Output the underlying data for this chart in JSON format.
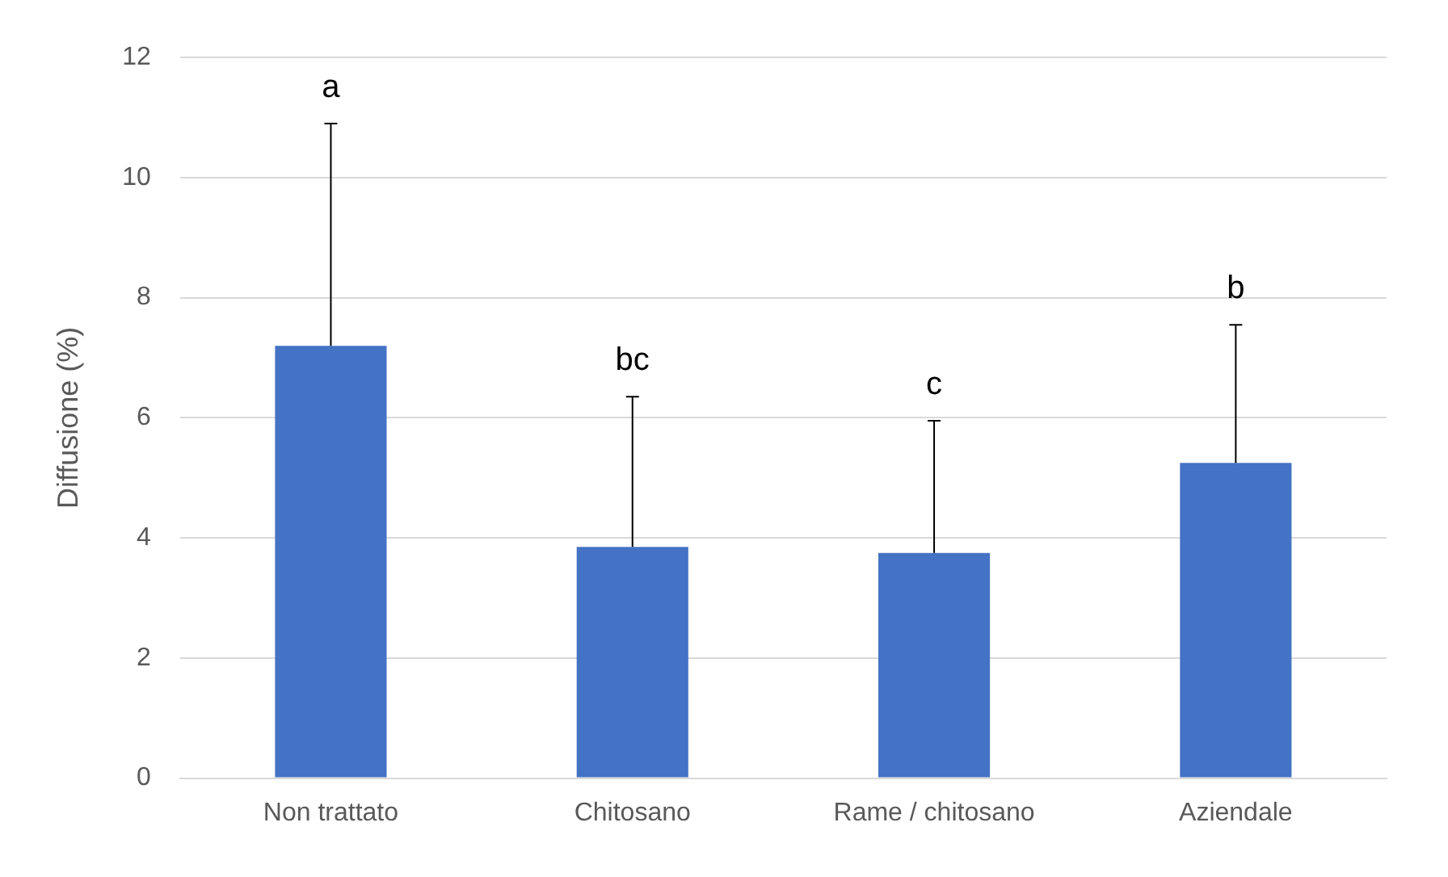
{
  "chart_data": {
    "type": "bar",
    "ylabel": "Diffusione (%)",
    "categories": [
      "Non trattato",
      "Chitosano",
      "Rame / chitosano",
      "Aziendale"
    ],
    "values": [
      7.2,
      3.85,
      3.75,
      5.25
    ],
    "color": "#4472c4",
    "errors": [
      [
        7.2,
        10.9
      ],
      [
        3.85,
        6.35
      ],
      [
        3.75,
        5.95
      ],
      [
        5.25,
        7.55
      ]
    ],
    "ylim": [
      0,
      12
    ],
    "yticks": [
      0,
      2,
      4,
      6,
      8,
      10,
      12
    ],
    "grid": "y",
    "legend": false,
    "annotations": [
      "a",
      "bc",
      "c",
      "b"
    ]
  }
}
